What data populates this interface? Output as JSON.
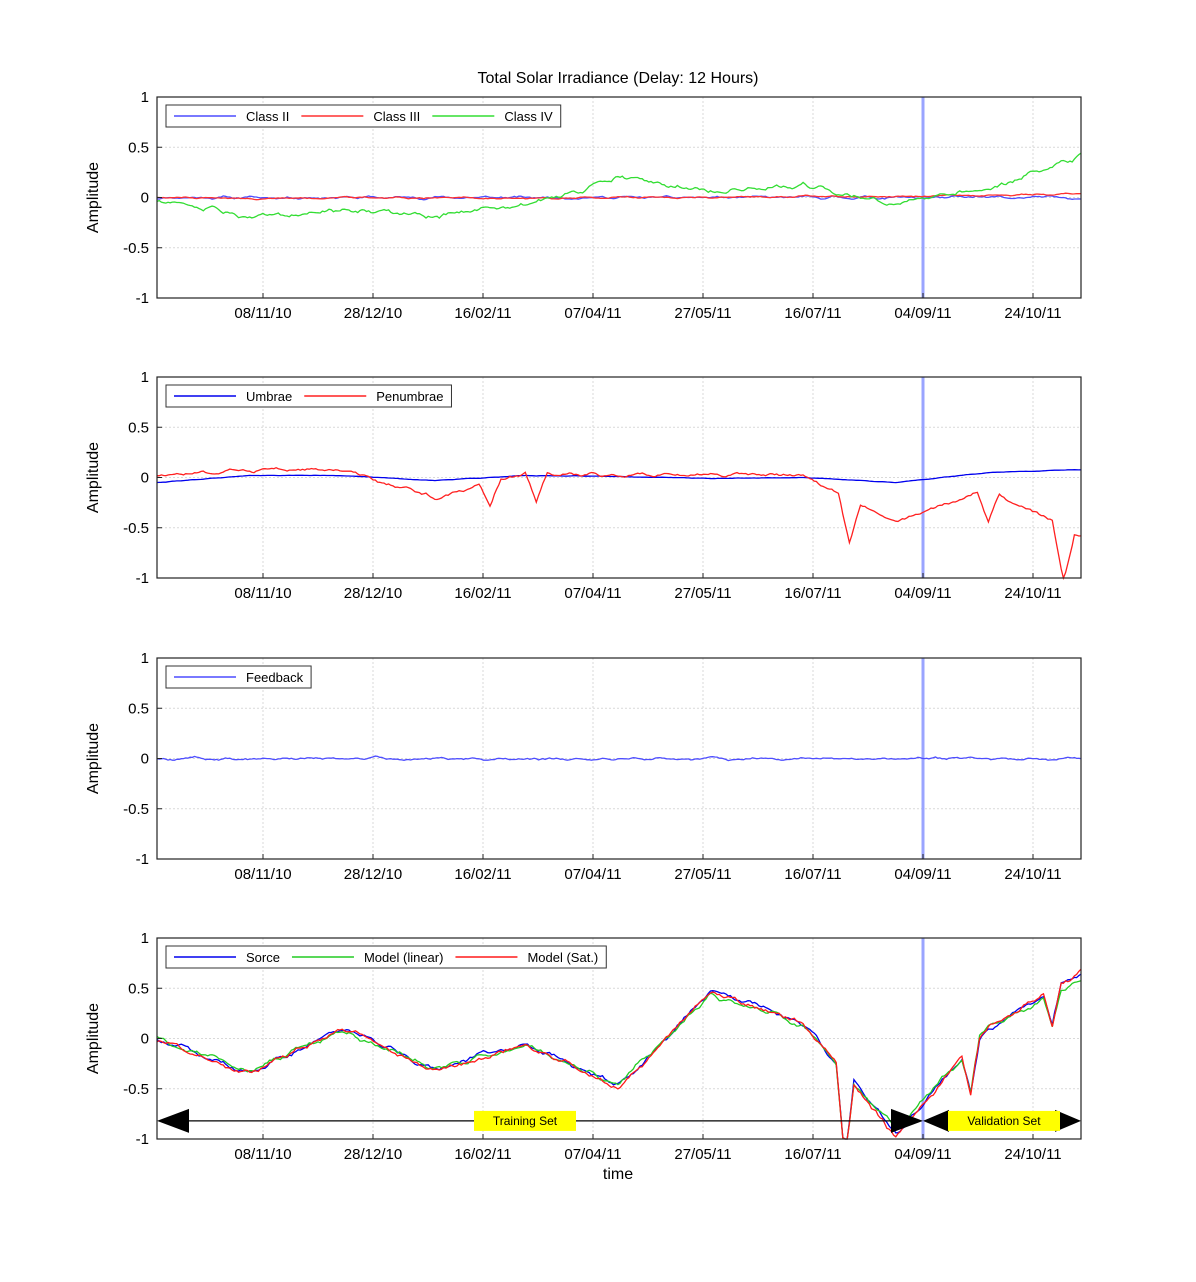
{
  "figure": {
    "title": "Total Solar Irradiance (Delay: 12 Hours)"
  },
  "chart_data": [
    {
      "type": "line",
      "ylabel": "Amplitude",
      "xlabel": "",
      "ylim": [
        -1,
        1
      ],
      "yticks": [
        "1",
        "0.5",
        "0",
        "-0.5",
        "-1"
      ],
      "xticks": [
        "08/11/10",
        "28/12/10",
        "16/02/11",
        "07/04/11",
        "27/05/11",
        "16/07/11",
        "04/09/11",
        "24/10/11"
      ],
      "grid": true,
      "legend_position": "top-left",
      "split_label": "04/09/11",
      "series": [
        {
          "name": "Class II",
          "color": "#4d4dff",
          "values": [
            0,
            0,
            0,
            0,
            0,
            0,
            0,
            0,
            0,
            0,
            0
          ]
        },
        {
          "name": "Class III",
          "color": "#ff3030",
          "values": [
            0,
            -0.01,
            0,
            0,
            -0.01,
            0,
            0,
            0.01,
            0.01,
            0.02,
            0.04
          ]
        },
        {
          "name": "Class IV",
          "color": "#33dd33",
          "values": [
            -0.03,
            -0.18,
            -0.12,
            -0.17,
            -0.08,
            0.2,
            0.05,
            0.12,
            -0.07,
            0.08,
            0.42
          ]
        }
      ]
    },
    {
      "type": "line",
      "ylabel": "Amplitude",
      "xlabel": "",
      "ylim": [
        -1,
        1
      ],
      "yticks": [
        "1",
        "0.5",
        "0",
        "-0.5",
        "-1"
      ],
      "xticks": [
        "08/11/10",
        "28/12/10",
        "16/02/11",
        "07/04/11",
        "27/05/11",
        "16/07/11",
        "04/09/11",
        "24/10/11"
      ],
      "grid": true,
      "legend_position": "top-left",
      "split_label": "04/09/11",
      "series": [
        {
          "name": "Umbrae",
          "color": "#0000ee",
          "values": [
            -0.05,
            0.02,
            0.02,
            -0.03,
            0.02,
            0.01,
            -0.01,
            0.0,
            -0.05,
            0.05,
            0.08
          ]
        },
        {
          "name": "Penumbrae",
          "color": "#ff2020",
          "values": [
            0.02,
            0.08,
            0.08,
            -0.2,
            0.04,
            0.02,
            0.04,
            0.02,
            -0.45,
            -0.1,
            -0.6
          ]
        }
      ]
    },
    {
      "type": "line",
      "ylabel": "Amplitude",
      "xlabel": "",
      "ylim": [
        -1,
        1
      ],
      "yticks": [
        "1",
        "0.5",
        "0",
        "-0.5",
        "-1"
      ],
      "xticks": [
        "08/11/10",
        "28/12/10",
        "16/02/11",
        "07/04/11",
        "27/05/11",
        "16/07/11",
        "04/09/11",
        "24/10/11"
      ],
      "grid": true,
      "legend_position": "top-left",
      "split_label": "04/09/11",
      "series": [
        {
          "name": "Feedback",
          "color": "#4d4dff",
          "values": [
            0,
            0,
            0,
            0,
            0,
            0,
            0,
            0,
            0,
            0,
            0
          ]
        }
      ]
    },
    {
      "type": "line",
      "ylabel": "Amplitude",
      "xlabel": "time",
      "ylim": [
        -1,
        1
      ],
      "yticks": [
        "1",
        "0.5",
        "0",
        "-0.5",
        "-1"
      ],
      "xticks": [
        "08/11/10",
        "28/12/10",
        "16/02/11",
        "07/04/11",
        "27/05/11",
        "16/07/11",
        "04/09/11",
        "24/10/11"
      ],
      "grid": true,
      "legend_position": "top-left",
      "split_label": "04/09/11",
      "annotations": {
        "training": "Training Set",
        "validation": "Validation Set"
      },
      "series": [
        {
          "name": "Sorce",
          "color": "#0000ee",
          "values": [
            0.0,
            -0.35,
            0.1,
            -0.3,
            -0.05,
            -0.48,
            0.48,
            0.15,
            -0.95,
            0.1,
            0.65
          ]
        },
        {
          "name": "Model (linear)",
          "color": "#22cc22",
          "values": [
            0.0,
            -0.33,
            0.08,
            -0.3,
            -0.05,
            -0.45,
            0.45,
            0.13,
            -0.92,
            0.1,
            0.6
          ]
        },
        {
          "name": "Model (Sat.)",
          "color": "#ff1a1a",
          "values": [
            0.0,
            -0.36,
            0.1,
            -0.32,
            -0.06,
            -0.5,
            0.47,
            0.14,
            -0.97,
            0.1,
            0.65
          ]
        }
      ]
    }
  ]
}
